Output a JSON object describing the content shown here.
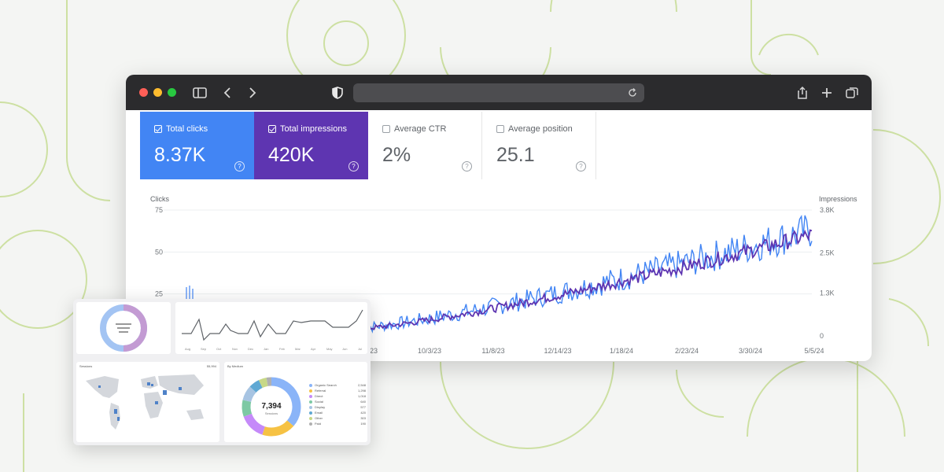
{
  "browser": {
    "toolbar_icons": [
      "sidebar-icon",
      "back-icon",
      "forward-icon",
      "shield-icon",
      "reload-icon",
      "share-icon",
      "new-tab-icon",
      "tabs-icon"
    ],
    "traffic_light_colors": [
      "#ff5f57",
      "#febc2e",
      "#28c840"
    ]
  },
  "metrics": [
    {
      "label": "Total clicks",
      "value": "8.37K",
      "selected": true,
      "color": "#4285f4"
    },
    {
      "label": "Total impressions",
      "value": "420K",
      "selected": true,
      "color": "#5e35b1"
    },
    {
      "label": "Average CTR",
      "value": "2%",
      "selected": false,
      "color": "#ffffff"
    },
    {
      "label": "Average position",
      "value": "25.1",
      "selected": false,
      "color": "#ffffff"
    }
  ],
  "help_glyph": "?",
  "chart_data": {
    "type": "line",
    "ylabel": "Clicks",
    "y2label": "Impressions",
    "ylim": [
      0,
      75
    ],
    "y2lim": [
      0,
      3800
    ],
    "y_ticks": [
      "75",
      "50",
      "25"
    ],
    "y2_ticks": [
      "3.8K",
      "2.5K",
      "1.3K",
      "0"
    ],
    "x_ticks": [
      "23",
      "10/3/23",
      "11/8/23",
      "12/14/23",
      "1/18/24",
      "2/23/24",
      "3/30/24",
      "5/5/24"
    ],
    "series": [
      {
        "color": "#4285f4",
        "axis": "left",
        "start": 5,
        "end": 63,
        "noise": 8
      },
      {
        "color": "#5e35b1",
        "axis": "right",
        "start": 220,
        "end": 3050,
        "noise": 180
      }
    ],
    "grid": true
  },
  "overlay": {
    "donut_center": "7,394",
    "donut_sub": "Sessions",
    "map_title": "Sessions",
    "map_value": "55,994",
    "pie_title": "By Medium",
    "pie_legend": [
      {
        "label": "Organic Search",
        "value": "2,548",
        "color": "#8ab4f8"
      },
      {
        "label": "Referral",
        "value": "1,298",
        "color": "#f6c244"
      },
      {
        "label": "Direct",
        "value": "1,018",
        "color": "#c58af9"
      },
      {
        "label": "Social",
        "value": "640",
        "color": "#7dc9a4"
      },
      {
        "label": "Display",
        "value": "577",
        "color": "#a7c4e2"
      },
      {
        "label": "Email",
        "value": "420",
        "color": "#5fa8d3"
      },
      {
        "label": "Other",
        "value": "303",
        "color": "#c7d886"
      },
      {
        "label": "Paid",
        "value": "190",
        "color": "#b0b0b0"
      }
    ],
    "mini_donut_colors": [
      "#a3c4f3",
      "#c39bd3"
    ],
    "line_x_ticks": [
      "Aug",
      "Sep",
      "Oct",
      "Nov",
      "Dec",
      "Jan",
      "Feb",
      "Mar",
      "Apr",
      "May",
      "Jun",
      "Jul"
    ]
  }
}
